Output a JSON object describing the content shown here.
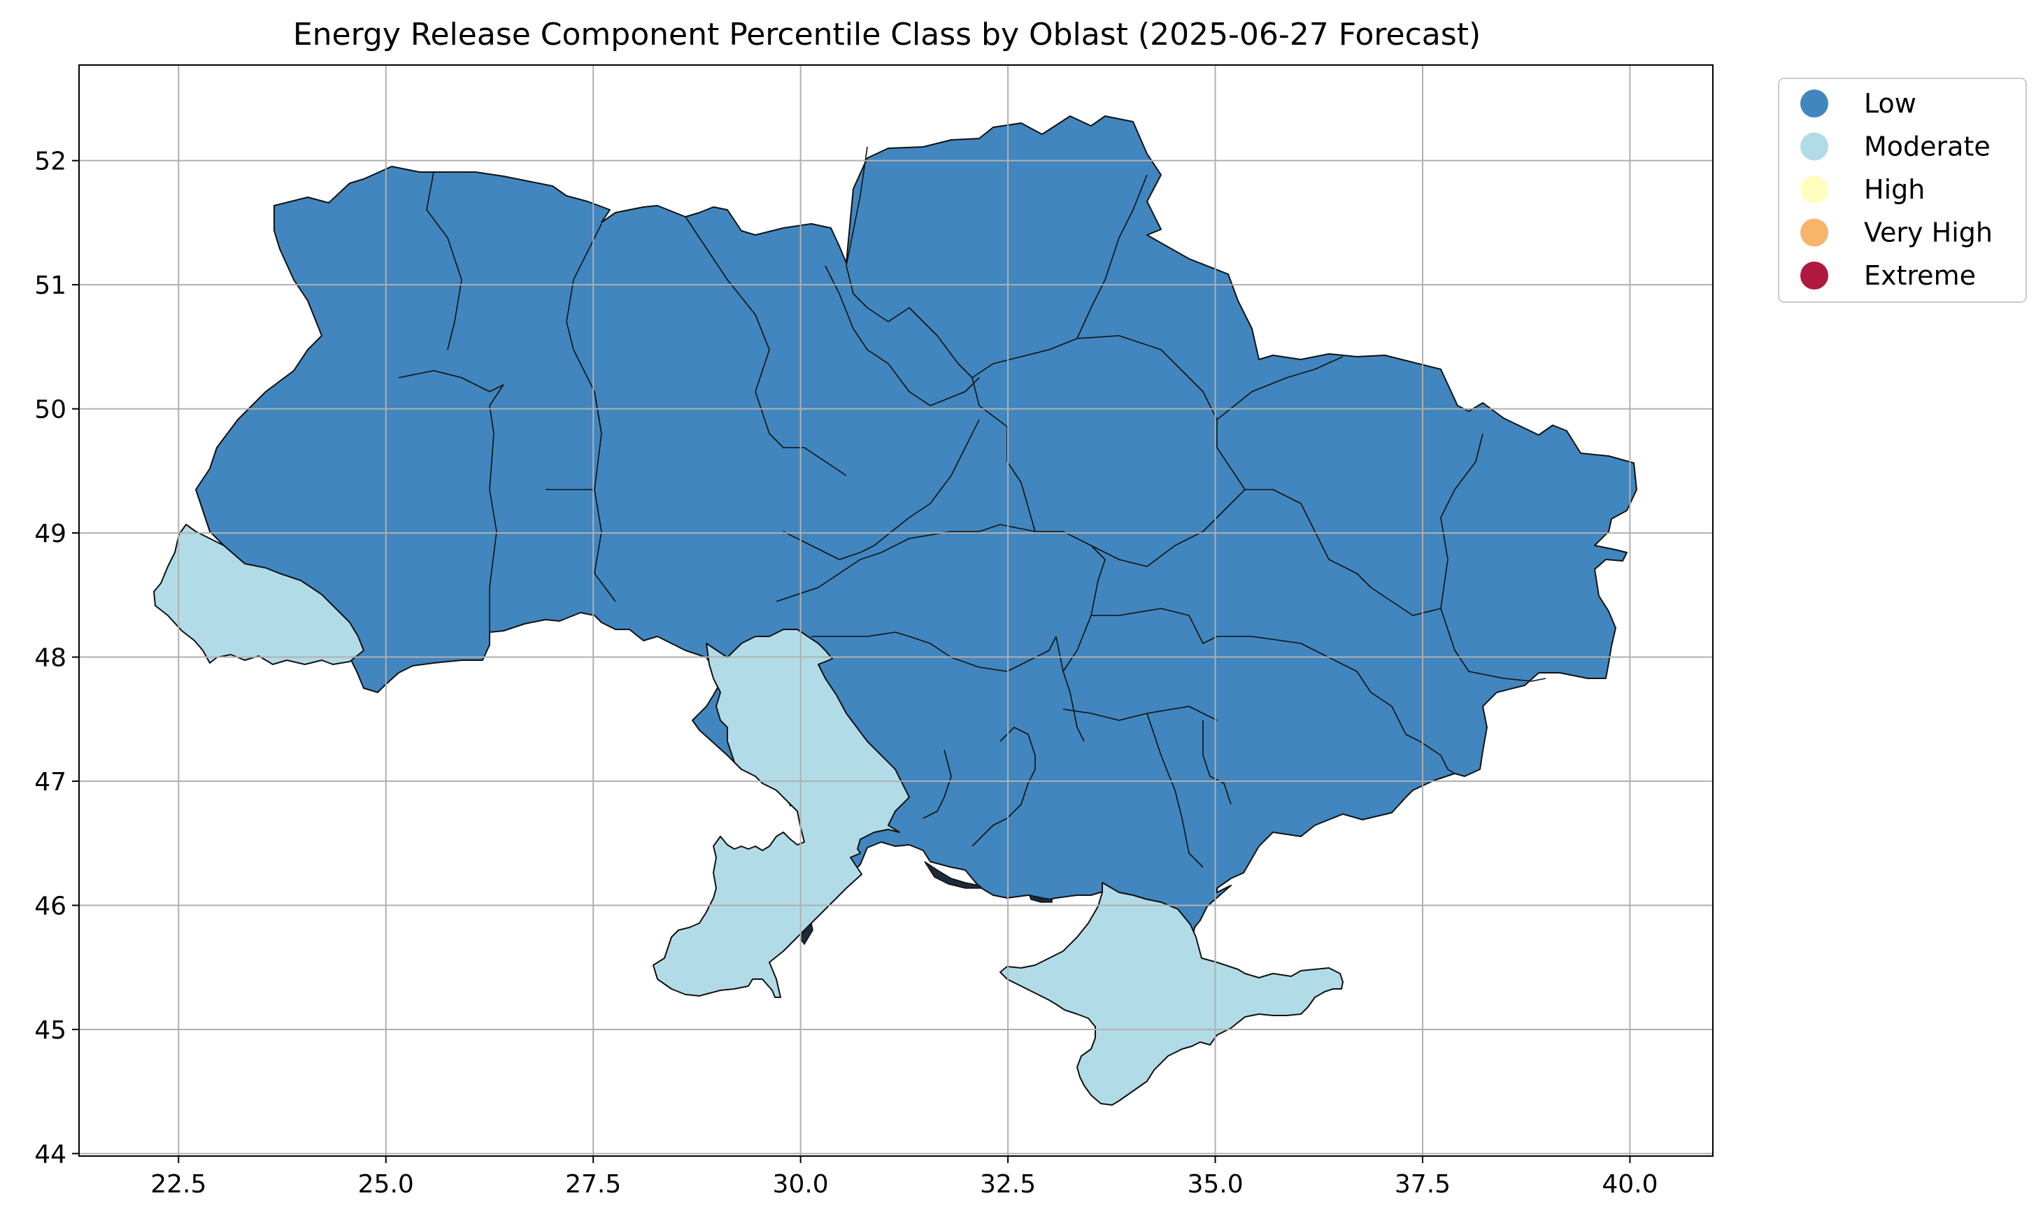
{
  "chart_data": {
    "type": "map",
    "title": "Energy Release Component Percentile Class by Oblast (2025-06-27 Forecast)",
    "xlabel": "",
    "ylabel": "",
    "xlim": [
      21.3,
      41.0
    ],
    "ylim": [
      43.98,
      52.77
    ],
    "x_ticks": [
      "22.5",
      "25.0",
      "27.5",
      "30.0",
      "32.5",
      "35.0",
      "37.5",
      "40.0"
    ],
    "x_tick_values": [
      22.5,
      25.0,
      27.5,
      30.0,
      32.5,
      35.0,
      37.5,
      40.0
    ],
    "y_ticks": [
      "44",
      "45",
      "46",
      "47",
      "48",
      "49",
      "50",
      "51",
      "52"
    ],
    "y_tick_values": [
      44,
      45,
      46,
      47,
      48,
      49,
      50,
      51,
      52
    ],
    "grid": true,
    "legend_position": "outside top-right",
    "legend": [
      {
        "label": "Low",
        "color": "#4186be"
      },
      {
        "label": "Moderate",
        "color": "#b2dbe8"
      },
      {
        "label": "High",
        "color": "#fefebf"
      },
      {
        "label": "Very High",
        "color": "#f9b46c"
      },
      {
        "label": "Extreme",
        "color": "#b0193f"
      }
    ],
    "regions_by_class": {
      "Low": "all oblasts except those listed as Moderate",
      "Moderate": [
        "Zakarpattia",
        "Odesa",
        "Crimea"
      ]
    }
  }
}
